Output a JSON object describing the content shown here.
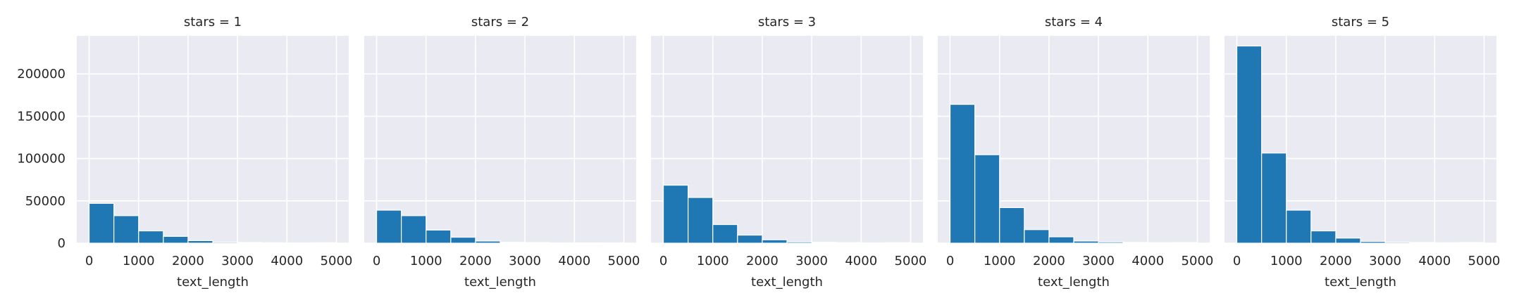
{
  "chart_data": {
    "type": "bar",
    "layout": "facet-grid-1x5",
    "style": "seaborn-darkgrid",
    "grid": true,
    "bar_color": "#1f77b4",
    "background_color": "#eaeaf2",
    "grid_color": "#ffffff",
    "xlabel": "text_length",
    "ylabel": "",
    "xlim": [
      -250,
      5250
    ],
    "ylim": [
      0,
      245000
    ],
    "xticks": [
      0,
      1000,
      2000,
      3000,
      4000,
      5000
    ],
    "yticks": [
      0,
      50000,
      100000,
      150000,
      200000
    ],
    "bin_edges": [
      0,
      500,
      1000,
      1500,
      2000,
      2500,
      3000,
      3500,
      4000,
      4500,
      5000
    ],
    "facets": [
      {
        "title": "stars = 1",
        "values": [
          47000,
          32500,
          14500,
          8000,
          3000,
          1200,
          800,
          500,
          400,
          500
        ]
      },
      {
        "title": "stars = 2",
        "values": [
          39000,
          32500,
          15500,
          7000,
          2500,
          1000,
          700,
          400,
          300,
          400
        ]
      },
      {
        "title": "stars = 3",
        "values": [
          68500,
          54000,
          22000,
          9500,
          4000,
          1500,
          1000,
          600,
          400,
          600
        ]
      },
      {
        "title": "stars = 4",
        "values": [
          164000,
          104500,
          42000,
          16000,
          7500,
          2500,
          1500,
          900,
          600,
          700
        ]
      },
      {
        "title": "stars = 5",
        "values": [
          233000,
          106500,
          39000,
          14500,
          6000,
          2000,
          1200,
          800,
          500,
          800
        ]
      }
    ]
  }
}
